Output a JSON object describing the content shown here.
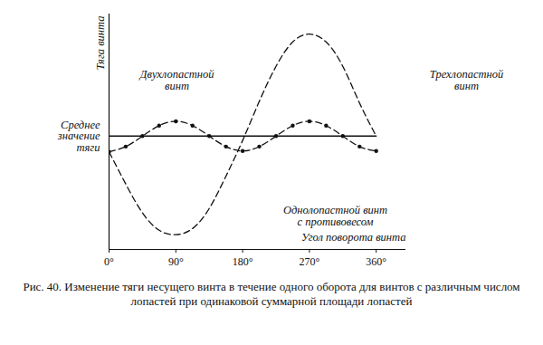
{
  "chart_data": {
    "type": "line",
    "caption": "Рис. 40. Изменение тяги несущего винта в течение одного оборота для винтов с различным числом лопастей при одинаковой суммарной площади лопастей",
    "x_label": "Угол поворота винта",
    "y_label": "Тяга винта",
    "annotations": [
      "Среднее значение тяги"
    ],
    "x": [
      0,
      22.5,
      45,
      67.5,
      90,
      112.5,
      135,
      157.5,
      180,
      202.5,
      225,
      247.5,
      270,
      292.5,
      315,
      337.5,
      360
    ],
    "series": [
      {
        "name": "Двухлопастной винт",
        "color": "#111111",
        "line_style": "dashed",
        "marker": "dot",
        "values": [
          -1.8,
          -1.2,
          0,
          1.2,
          1.7,
          1.2,
          0,
          -1.2,
          -1.7,
          -1.2,
          0,
          1.2,
          1.7,
          1.2,
          0,
          -1.2,
          -1.7
        ]
      },
      {
        "name": "Однолопастной винт с противовесом",
        "color": "#111111",
        "line_style": "dashed",
        "marker": "none",
        "values": [
          -1.8,
          -5.5,
          -8.8,
          -10.8,
          -11.3,
          -10.6,
          -8.3,
          -4.6,
          -0.5,
          4.0,
          8.0,
          10.8,
          11.7,
          10.8,
          8.0,
          3.8,
          0
        ]
      },
      {
        "name": "Трехлопастной винт",
        "color": "#111111",
        "line_style": "solid",
        "marker": "none",
        "values": [
          0,
          0,
          0,
          0,
          0,
          0,
          0,
          0,
          0,
          0,
          0,
          0,
          0,
          0,
          0,
          0,
          0
        ]
      }
    ],
    "xlim": [
      0,
      400
    ],
    "xticks": [
      {
        "value": 0,
        "label": "0°"
      },
      {
        "value": 90,
        "label": "90°"
      },
      {
        "value": 180,
        "label": "180°"
      },
      {
        "value": 270,
        "label": "270°"
      },
      {
        "value": 360,
        "label": "360°"
      }
    ],
    "ylim": [
      -13,
      14
    ],
    "tick_labels": "x",
    "grid": false
  }
}
